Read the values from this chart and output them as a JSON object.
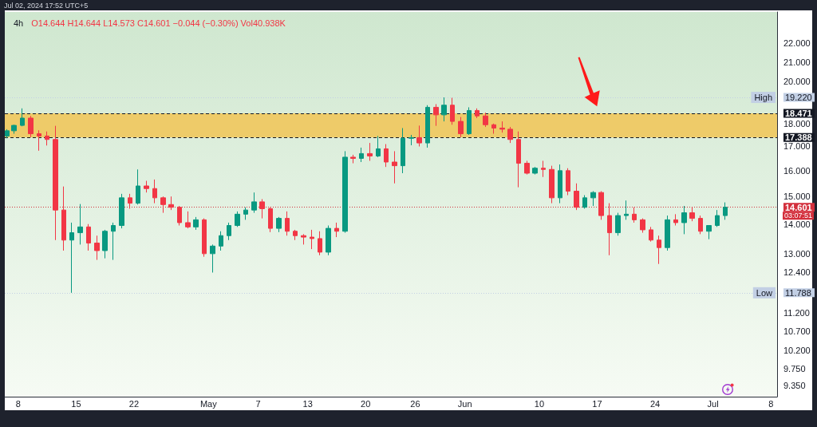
{
  "chart_data": {
    "type": "candlestick",
    "title": "4h",
    "subtitle": "O14.644 H14.644 L14.573 C14.601 −0.044 (−0.30%) Vol40.938K",
    "annotations": [
      "Jul 02, 2024 17:52 UTC+5",
      "03:07:51"
    ],
    "x": [
      "2024-04-06T16:00",
      "2024-04-07T12:00",
      "2024-04-08T12:00",
      "2024-04-09T12:00",
      "2024-04-10T12:00",
      "2024-04-11T12:00",
      "2024-04-12T12:00",
      "2024-04-13T12:00",
      "2024-04-14T12:00",
      "2024-04-15T12:00",
      "2024-04-16T12:00",
      "2024-04-17T12:00",
      "2024-04-18T12:00",
      "2024-04-19T12:00",
      "2024-04-20T12:00",
      "2024-04-21T12:00",
      "2024-04-22T12:00",
      "2024-04-23T12:00",
      "2024-04-24T12:00",
      "2024-04-25T12:00",
      "2024-04-26T12:00",
      "2024-04-27T12:00",
      "2024-04-28T12:00",
      "2024-04-29T12:00",
      "2024-04-30T12:00",
      "2024-05-01T12:00",
      "2024-05-02T12:00",
      "2024-05-03T12:00",
      "2024-05-04T12:00",
      "2024-05-05T12:00",
      "2024-05-06T12:00",
      "2024-05-07T12:00",
      "2024-05-08T12:00",
      "2024-05-09T12:00",
      "2024-05-10T12:00",
      "2024-05-11T12:00",
      "2024-05-12T12:00",
      "2024-05-13T12:00",
      "2024-05-14T12:00",
      "2024-05-15T12:00",
      "2024-05-16T12:00",
      "2024-05-17T12:00",
      "2024-05-18T12:00",
      "2024-05-19T12:00",
      "2024-05-20T12:00",
      "2024-05-21T12:00",
      "2024-05-22T12:00",
      "2024-05-23T12:00",
      "2024-05-24T12:00",
      "2024-05-25T12:00",
      "2024-05-26T12:00",
      "2024-05-27T12:00",
      "2024-05-28T12:00",
      "2024-05-29T12:00",
      "2024-05-30T12:00",
      "2024-05-31T12:00",
      "2024-06-01T12:00",
      "2024-06-02T12:00",
      "2024-06-03T12:00",
      "2024-06-04T12:00",
      "2024-06-05T12:00",
      "2024-06-06T12:00",
      "2024-06-07T12:00",
      "2024-06-08T12:00",
      "2024-06-09T12:00",
      "2024-06-10T12:00",
      "2024-06-11T12:00",
      "2024-06-12T12:00",
      "2024-06-13T12:00",
      "2024-06-14T12:00",
      "2024-06-15T12:00",
      "2024-06-16T12:00",
      "2024-06-17T12:00",
      "2024-06-18T12:00",
      "2024-06-19T12:00",
      "2024-06-20T12:00",
      "2024-06-21T12:00",
      "2024-06-22T12:00",
      "2024-06-23T12:00",
      "2024-06-24T12:00",
      "2024-06-25T12:00",
      "2024-06-26T12:00",
      "2024-06-27T12:00",
      "2024-06-28T12:00",
      "2024-06-29T12:00",
      "2024-06-30T12:00",
      "2024-07-01T12:00",
      "2024-07-02T12:00"
    ],
    "ohlc": [
      [
        17.45,
        17.75,
        17.35,
        17.68
      ],
      [
        17.68,
        17.95,
        17.55,
        17.92
      ],
      [
        17.92,
        18.7,
        17.88,
        18.25
      ],
      [
        18.25,
        18.35,
        17.4,
        17.55
      ],
      [
        17.55,
        17.7,
        16.82,
        17.45
      ],
      [
        17.45,
        17.65,
        17.04,
        17.3
      ],
      [
        17.3,
        17.9,
        13.45,
        14.5
      ],
      [
        14.5,
        15.38,
        13.1,
        13.45
      ],
      [
        13.45,
        14.05,
        11.788,
        13.7
      ],
      [
        13.7,
        14.72,
        13.3,
        13.9
      ],
      [
        13.9,
        14.0,
        13.1,
        13.35
      ],
      [
        13.35,
        13.6,
        12.8,
        13.1
      ],
      [
        13.1,
        13.8,
        12.85,
        13.75
      ],
      [
        13.75,
        14.05,
        12.8,
        13.95
      ],
      [
        13.95,
        15.1,
        13.85,
        14.95
      ],
      [
        14.95,
        15.1,
        14.55,
        14.75
      ],
      [
        14.75,
        16.05,
        14.7,
        15.4
      ],
      [
        15.4,
        15.6,
        15.15,
        15.3
      ],
      [
        15.3,
        15.65,
        14.75,
        14.95
      ],
      [
        14.95,
        15.0,
        14.4,
        14.7
      ],
      [
        14.7,
        15.0,
        14.5,
        14.6
      ],
      [
        14.6,
        14.65,
        13.95,
        14.05
      ],
      [
        14.05,
        14.45,
        13.85,
        13.9
      ],
      [
        13.9,
        14.25,
        13.8,
        14.15
      ],
      [
        14.15,
        14.2,
        12.9,
        13.0
      ],
      [
        13.0,
        13.3,
        12.4,
        13.25
      ],
      [
        13.25,
        13.75,
        13.1,
        13.6
      ],
      [
        13.6,
        14.05,
        13.45,
        13.95
      ],
      [
        13.95,
        14.45,
        13.9,
        14.35
      ],
      [
        14.35,
        14.6,
        14.15,
        14.5
      ],
      [
        14.5,
        15.15,
        14.4,
        14.8
      ],
      [
        14.8,
        14.9,
        14.2,
        14.55
      ],
      [
        14.55,
        14.6,
        13.72,
        13.85
      ],
      [
        13.85,
        14.25,
        13.72,
        14.2
      ],
      [
        14.2,
        14.45,
        13.6,
        13.75
      ],
      [
        13.75,
        13.8,
        13.45,
        13.6
      ],
      [
        13.6,
        13.65,
        13.3,
        13.55
      ],
      [
        13.55,
        13.8,
        13.15,
        13.5
      ],
      [
        13.5,
        13.75,
        12.95,
        13.05
      ],
      [
        13.05,
        13.95,
        12.95,
        13.85
      ],
      [
        13.85,
        14.05,
        13.55,
        13.75
      ],
      [
        13.75,
        16.8,
        13.7,
        16.55
      ],
      [
        16.55,
        16.65,
        16.3,
        16.5
      ],
      [
        16.5,
        16.95,
        16.35,
        16.7
      ],
      [
        16.7,
        17.15,
        16.4,
        16.6
      ],
      [
        16.6,
        17.45,
        16.55,
        16.9
      ],
      [
        16.9,
        17.1,
        16.15,
        16.35
      ],
      [
        16.35,
        16.8,
        15.5,
        16.2
      ],
      [
        16.2,
        17.8,
        15.9,
        17.35
      ],
      [
        17.35,
        17.5,
        17.05,
        17.38
      ],
      [
        17.38,
        17.91,
        17.0,
        17.15
      ],
      [
        17.15,
        18.85,
        16.95,
        18.75
      ],
      [
        18.75,
        18.9,
        17.9,
        18.4
      ],
      [
        18.4,
        19.22,
        18.1,
        18.85
      ],
      [
        18.85,
        19.2,
        17.95,
        18.1
      ],
      [
        18.1,
        18.3,
        17.4,
        17.55
      ],
      [
        17.55,
        18.75,
        17.5,
        18.6
      ],
      [
        18.6,
        18.7,
        18.25,
        18.35
      ],
      [
        18.35,
        18.5,
        17.85,
        17.95
      ],
      [
        17.95,
        18.0,
        17.55,
        17.8
      ],
      [
        17.8,
        18.1,
        17.6,
        17.75
      ],
      [
        17.75,
        17.85,
        17.15,
        17.3
      ],
      [
        17.3,
        17.65,
        15.35,
        16.3
      ],
      [
        16.3,
        16.4,
        15.85,
        15.9
      ],
      [
        15.9,
        16.15,
        15.85,
        16.1
      ],
      [
        16.1,
        16.4,
        15.75,
        16.05
      ],
      [
        16.05,
        16.2,
        14.75,
        14.95
      ],
      [
        14.95,
        16.25,
        14.75,
        16.0
      ],
      [
        16.0,
        16.1,
        15.05,
        15.2
      ],
      [
        15.2,
        15.5,
        14.5,
        14.6
      ],
      [
        14.6,
        15.05,
        14.55,
        14.95
      ],
      [
        14.95,
        15.2,
        14.65,
        15.15
      ],
      [
        15.15,
        15.2,
        14.15,
        14.3
      ],
      [
        14.3,
        14.75,
        12.95,
        13.7
      ],
      [
        13.7,
        14.4,
        13.6,
        14.3
      ],
      [
        14.3,
        14.85,
        14.15,
        14.35
      ],
      [
        14.35,
        14.6,
        14.05,
        14.15
      ],
      [
        14.15,
        14.2,
        13.7,
        13.8
      ],
      [
        13.8,
        13.9,
        13.4,
        13.45
      ],
      [
        13.45,
        13.6,
        12.67,
        13.2
      ],
      [
        13.2,
        14.3,
        13.1,
        14.15
      ],
      [
        14.15,
        14.35,
        13.95,
        14.05
      ],
      [
        14.05,
        14.65,
        13.65,
        14.4
      ],
      [
        14.4,
        14.6,
        14.1,
        14.2
      ],
      [
        14.2,
        14.3,
        13.65,
        13.75
      ],
      [
        13.75,
        13.95,
        13.48,
        13.95
      ],
      [
        13.95,
        14.5,
        13.9,
        14.3
      ],
      [
        14.3,
        14.78,
        14.15,
        14.601
      ]
    ],
    "colors": [
      "#089981",
      "#089981",
      "#089981",
      "#f23645",
      "#f23645",
      "#f23645",
      "#f23645",
      "#f23645",
      "#089981",
      "#089981",
      "#f23645",
      "#f23645",
      "#089981",
      "#089981",
      "#089981",
      "#f23645",
      "#089981",
      "#f23645",
      "#f23645",
      "#f23645",
      "#f23645",
      "#f23645",
      "#f23645",
      "#089981",
      "#f23645",
      "#089981",
      "#089981",
      "#089981",
      "#089981",
      "#089981",
      "#089981",
      "#f23645",
      "#f23645",
      "#089981",
      "#f23645",
      "#f23645",
      "#f23645",
      "#f23645",
      "#f23645",
      "#089981",
      "#f23645",
      "#089981",
      "#f23645",
      "#089981",
      "#f23645",
      "#089981",
      "#f23645",
      "#f23645",
      "#089981",
      "#089981",
      "#f23645",
      "#089981",
      "#f23645",
      "#089981",
      "#f23645",
      "#f23645",
      "#089981",
      "#f23645",
      "#f23645",
      "#f23645",
      "#f23645",
      "#f23645",
      "#f23645",
      "#f23645",
      "#089981",
      "#f23645",
      "#f23645",
      "#089981",
      "#f23645",
      "#f23645",
      "#089981",
      "#089981",
      "#f23645",
      "#f23645",
      "#089981",
      "#089981",
      "#f23645",
      "#f23645",
      "#f23645",
      "#f23645",
      "#089981",
      "#f23645",
      "#089981",
      "#f23645",
      "#f23645",
      "#089981",
      "#089981",
      "#089981"
    ],
    "xlim": [
      "2024-04-06T09:00",
      "2024-07-08T18:00"
    ],
    "xticks": [
      {
        "value": "2024-04-08",
        "label": "8"
      },
      {
        "value": "2024-04-15",
        "label": "15"
      },
      {
        "value": "2024-04-22",
        "label": "22"
      },
      {
        "value": "2024-05-01",
        "label": "May"
      },
      {
        "value": "2024-05-07",
        "label": "7"
      },
      {
        "value": "2024-05-13",
        "label": "13"
      },
      {
        "value": "2024-05-20",
        "label": "20"
      },
      {
        "value": "2024-05-26",
        "label": "26"
      },
      {
        "value": "2024-06-01",
        "label": "Jun"
      },
      {
        "value": "2024-06-10",
        "label": "10"
      },
      {
        "value": "2024-06-17",
        "label": "17"
      },
      {
        "value": "2024-06-24",
        "label": "24"
      },
      {
        "value": "2024-07-01",
        "label": "Jul"
      },
      {
        "value": "2024-07-08",
        "label": "8"
      }
    ],
    "ylim": [
      9.09,
      23.8
    ],
    "yticks": [
      {
        "value": 22,
        "label": "22.000"
      },
      {
        "value": 21,
        "label": "21.000"
      },
      {
        "value": 20,
        "label": "20.000"
      },
      {
        "value": 19.22,
        "label": "19.220"
      },
      {
        "value": 18.471,
        "label": "18.471"
      },
      {
        "value": 18,
        "label": "18.000"
      },
      {
        "value": 17.388,
        "label": "17.388"
      },
      {
        "value": 17,
        "label": "17.000"
      },
      {
        "value": 16,
        "label": "16.000"
      },
      {
        "value": 15,
        "label": "15.000"
      },
      {
        "value": 14.601,
        "label": "14.601"
      },
      {
        "value": 14,
        "label": "14.000"
      },
      {
        "value": 13,
        "label": "13.000"
      },
      {
        "value": 12.4,
        "label": "12.400"
      },
      {
        "value": 11.788,
        "label": "11.788"
      },
      {
        "value": 11.2,
        "label": "11.200"
      },
      {
        "value": 10.7,
        "label": "10.700"
      },
      {
        "value": 10.2,
        "label": "10.200"
      },
      {
        "value": 9.75,
        "label": "9.750"
      },
      {
        "value": 9.35,
        "label": "9.350"
      }
    ],
    "log": true,
    "grid": false,
    "ref_lines": [
      {
        "axis": "y",
        "value": 19.22,
        "label": "High",
        "color": "#c2cfe4",
        "line_style": "dotted"
      },
      {
        "axis": "y",
        "value": 18.471,
        "color": "#131722",
        "line_style": "dashed"
      },
      {
        "axis": "y",
        "value": 17.388,
        "color": "#131722",
        "line_style": "dashed"
      },
      {
        "axis": "y",
        "value": 14.601,
        "color": "#d32f3c",
        "line_style": "dotted"
      },
      {
        "axis": "y",
        "value": 11.788,
        "label": "Low",
        "color": "#c2cfe4",
        "line_style": "dotted"
      }
    ],
    "bands": [
      {
        "axis": "y",
        "from": 17.388,
        "to": 18.471,
        "color": "#eecb69"
      }
    ]
  }
}
